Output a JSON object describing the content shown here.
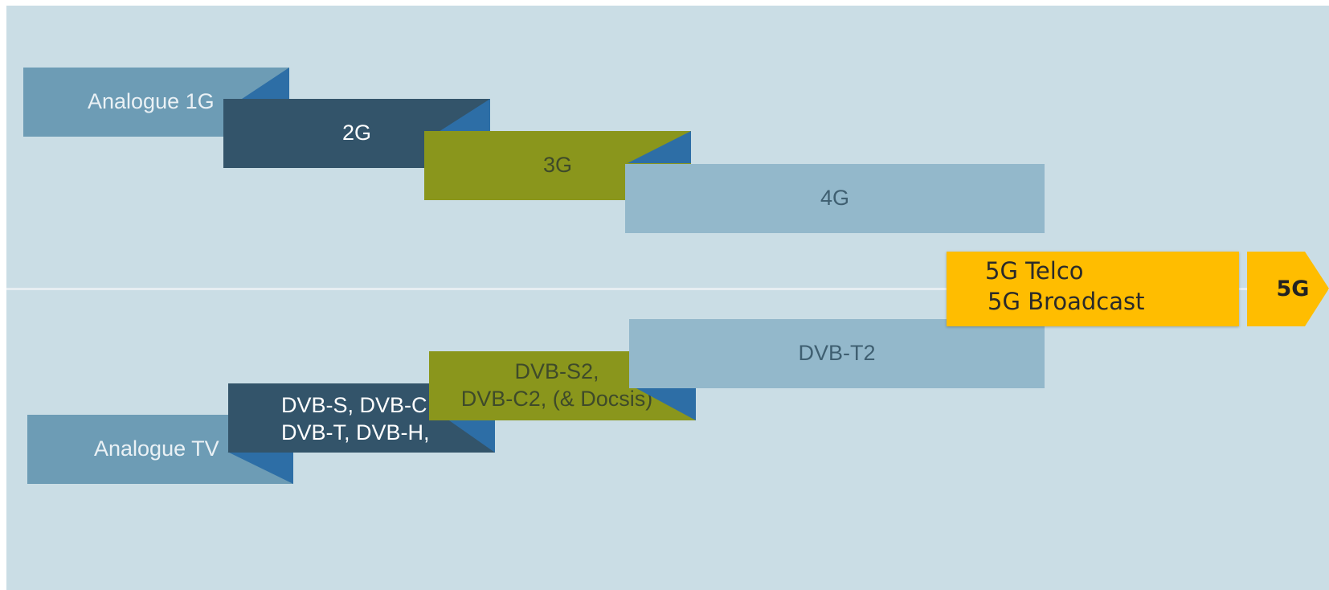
{
  "mobile_generations": [
    "Analogue 1G",
    "2G",
    "3G",
    "4G"
  ],
  "broadcast_generations": {
    "analogue": "Analogue TV",
    "dvb_first_line1": "DVB-S, DVB-C,",
    "dvb_first_line2": "DVB-T, DVB-H,",
    "dvb_second_line1": "DVB-S2,",
    "dvb_second_line2": "DVB-C2, (& Docsis)",
    "dvb_t2": "DVB-T2"
  },
  "convergence": {
    "line1": "5G Telco",
    "line2": "5G Broadcast",
    "label": "5G"
  },
  "colors": {
    "background": "#cadde5",
    "steel_blue": "#6d9cb5",
    "dark_slate": "#33546a",
    "olive": "#8a961c",
    "light_blue": "#93b8cb",
    "corner_blue": "#2d6ea6",
    "gold": "#ffbd00"
  }
}
